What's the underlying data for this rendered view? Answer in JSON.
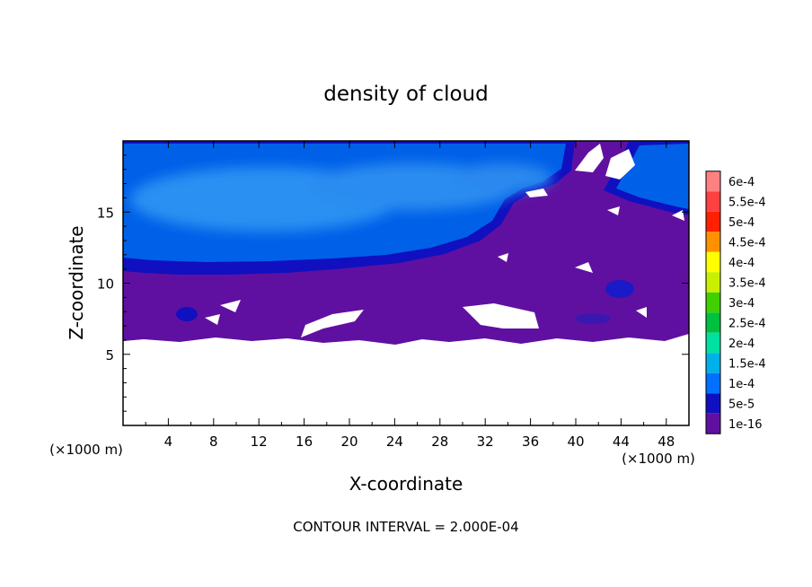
{
  "chart_data": {
    "type": "heatmap",
    "title": "density of cloud",
    "xlabel": "X-coordinate",
    "ylabel": "Z-coordinate",
    "x_units": "(×1000 m)",
    "y_units": "(×1000 m)",
    "xlim": [
      0,
      50
    ],
    "ylim": [
      0,
      20
    ],
    "x_ticks": [
      4,
      8,
      12,
      16,
      20,
      24,
      28,
      32,
      36,
      40,
      44,
      48
    ],
    "y_ticks": [
      5,
      10,
      15
    ],
    "footer": "CONTOUR INTERVAL = 2.000E-04",
    "colorbar": {
      "labels": [
        "6e-4",
        "5.5e-4",
        "5e-4",
        "4.5e-4",
        "4e-4",
        "3.5e-4",
        "3e-4",
        "2.5e-4",
        "2e-4",
        "1.5e-4",
        "1e-4",
        "5e-5",
        "1e-16"
      ],
      "colors": [
        "#ff8080",
        "#ff4040",
        "#ff2000",
        "#ff9000",
        "#ffff00",
        "#c8f000",
        "#40d000",
        "#00c040",
        "#00e0a0",
        "#00b0e8",
        "#0070ff",
        "#1010c0",
        "#6010a0"
      ]
    },
    "field": {
      "cloud_base_z": 6,
      "layers": [
        {
          "level": "1e-16",
          "z_range": [
            6,
            11
          ]
        },
        {
          "level": "5e-5",
          "z_range": [
            10.5,
            19.8
          ]
        },
        {
          "level": "1e-4",
          "z_range": [
            11.5,
            19.5
          ]
        },
        {
          "level": "1.5e-4",
          "z_range": [
            13,
            18
          ]
        }
      ]
    }
  }
}
